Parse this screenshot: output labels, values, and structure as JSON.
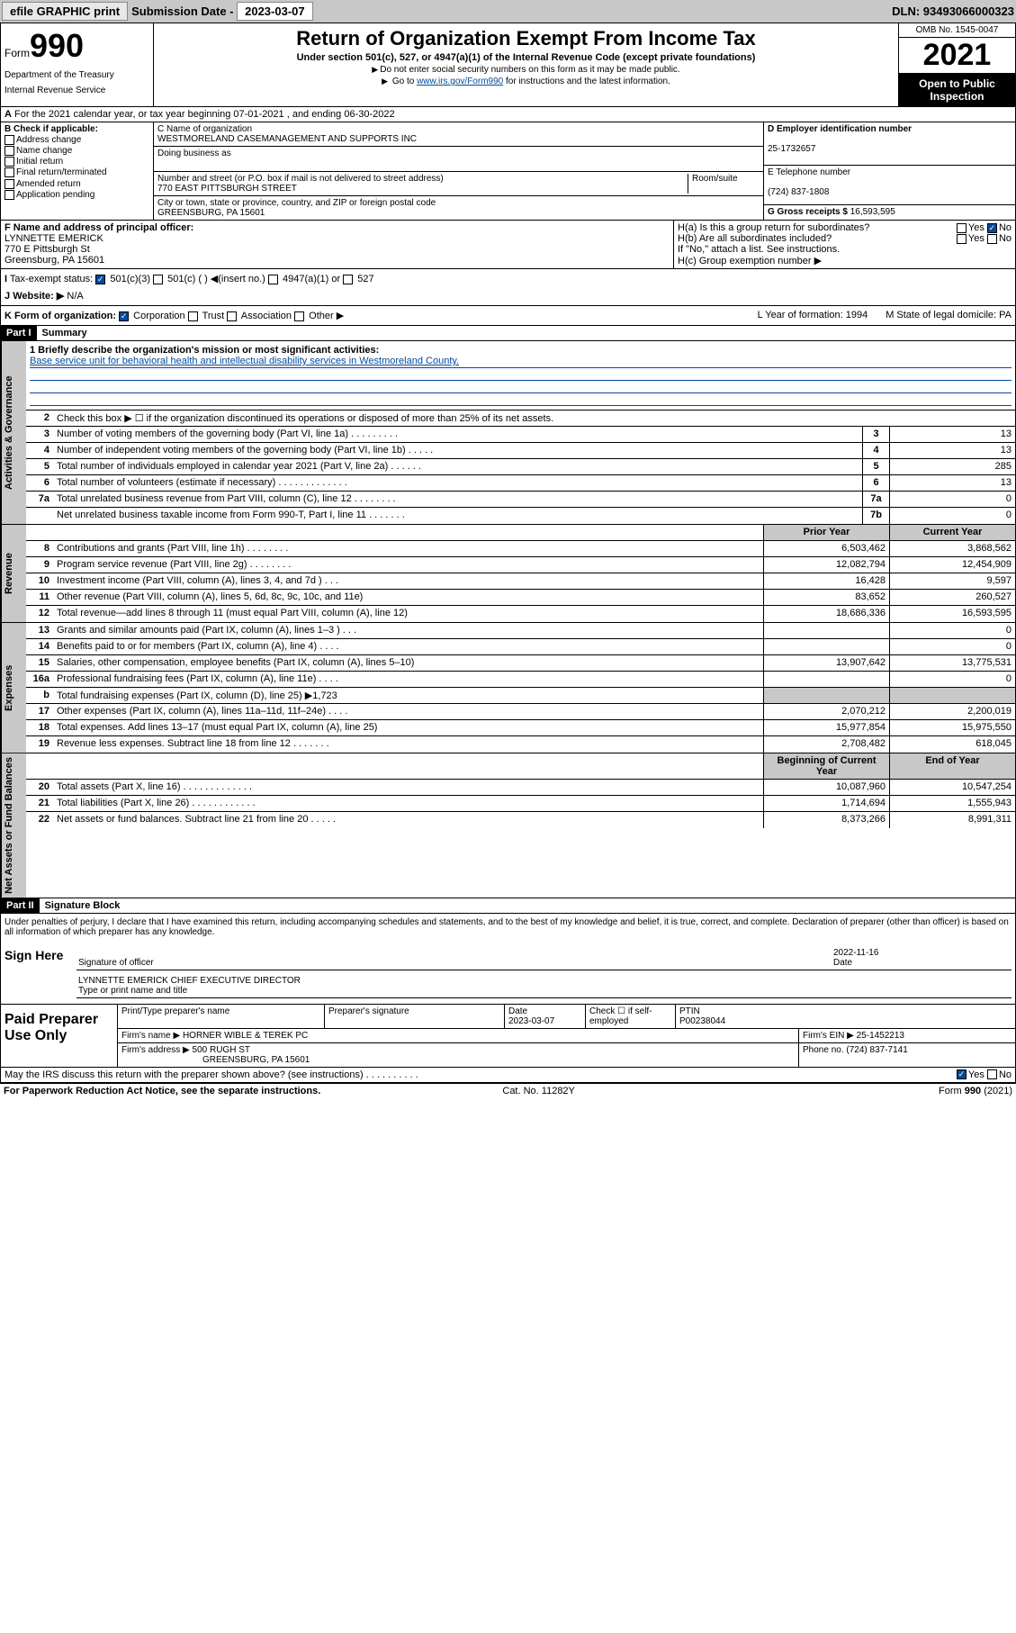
{
  "hdr": {
    "efile": "efile GRAPHIC print",
    "sub_lbl": "Submission Date - ",
    "sub_date": "2023-03-07",
    "dln": "DLN: 93493066000323"
  },
  "top": {
    "form_sm": "Form",
    "form_big": "990",
    "dept": "Department of the Treasury",
    "irs": "Internal Revenue Service",
    "title": "Return of Organization Exempt From Income Tax",
    "sub1": "Under section 501(c), 527, or 4947(a)(1) of the Internal Revenue Code (except private foundations)",
    "sub2": "Do not enter social security numbers on this form as it may be made public.",
    "sub3_pre": "Go to ",
    "sub3_link": "www.irs.gov/Form990",
    "sub3_post": " for instructions and the latest information.",
    "omb": "OMB No. 1545-0047",
    "year": "2021",
    "inspect": "Open to Public Inspection"
  },
  "a": {
    "text": "For the 2021 calendar year, or tax year beginning 07-01-2021   , and ending 06-30-2022"
  },
  "b": {
    "hdr": "B Check if applicable:",
    "opts": [
      "Address change",
      "Name change",
      "Initial return",
      "Final return/terminated",
      "Amended return",
      "Application pending"
    ]
  },
  "c": {
    "name_lbl": "C Name of organization",
    "name": "WESTMORELAND CASEMANAGEMENT AND SUPPORTS INC",
    "dba_lbl": "Doing business as",
    "addr_lbl": "Number and street (or P.O. box if mail is not delivered to street address)",
    "room_lbl": "Room/suite",
    "addr": "770 EAST PITTSBURGH STREET",
    "city_lbl": "City or town, state or province, country, and ZIP or foreign postal code",
    "city": "GREENSBURG, PA  15601"
  },
  "d": {
    "ein_lbl": "D Employer identification number",
    "ein": "25-1732657",
    "tel_lbl": "E Telephone number",
    "tel": "(724) 837-1808",
    "gross_lbl": "G Gross receipts $ ",
    "gross": "16,593,595"
  },
  "f": {
    "lbl": "F  Name and address of principal officer:",
    "name": "LYNNETTE EMERICK",
    "addr1": "770 E Pittsburgh St",
    "addr2": "Greensburg, PA  15601"
  },
  "h": {
    "a": "H(a)  Is this a group return for subordinates?",
    "b": "H(b)  Are all subordinates included?",
    "b2": "If \"No,\" attach a list. See instructions.",
    "c": "H(c)  Group exemption number ▶",
    "yes": "Yes",
    "no": "No"
  },
  "i": {
    "lbl": "Tax-exempt status:",
    "o1": "501(c)(3)",
    "o2": "501(c) (  ) ◀(insert no.)",
    "o3": "4947(a)(1) or",
    "o4": "527"
  },
  "j": {
    "lbl": "Website: ▶",
    "val": "N/A"
  },
  "k": {
    "lbl": "K Form of organization:",
    "o1": "Corporation",
    "o2": "Trust",
    "o3": "Association",
    "o4": "Other ▶",
    "l": "L Year of formation: 1994",
    "m": "M State of legal domicile: PA"
  },
  "p1": {
    "part": "Part I",
    "title": "Summary"
  },
  "mission": {
    "q": "1  Briefly describe the organization's mission or most significant activities:",
    "text": "Base service unit for behavioral health and intellectual disability services in Westmoreland County."
  },
  "gov": {
    "side": "Activities & Governance",
    "r2": "Check this box ▶ ☐  if the organization discontinued its operations or disposed of more than 25% of its net assets.",
    "rows": [
      {
        "n": "3",
        "t": "Number of voting members of the governing body (Part VI, line 1a)   .    .    .    .    .    .    .    .    .",
        "l": "3",
        "v": "13"
      },
      {
        "n": "4",
        "t": "Number of independent voting members of the governing body (Part VI, line 1b)   .    .    .    .    .",
        "l": "4",
        "v": "13"
      },
      {
        "n": "5",
        "t": "Total number of individuals employed in calendar year 2021 (Part V, line 2a)   .    .    .    .    .    .",
        "l": "5",
        "v": "285"
      },
      {
        "n": "6",
        "t": "Total number of volunteers (estimate if necessary)   .    .    .    .    .    .    .    .    .    .    .    .    .",
        "l": "6",
        "v": "13"
      },
      {
        "n": "7a",
        "t": "Total unrelated business revenue from Part VIII, column (C), line 12   .    .    .    .    .    .    .    .",
        "l": "7a",
        "v": "0"
      },
      {
        "n": "",
        "t": "Net unrelated business taxable income from Form 990-T, Part I, line 11   .    .    .    .    .    .    .",
        "l": "7b",
        "v": "0"
      }
    ]
  },
  "rev": {
    "side": "Revenue",
    "hdr_prior": "Prior Year",
    "hdr_cur": "Current Year",
    "rows": [
      {
        "n": "8",
        "t": "Contributions and grants (Part VIII, line 1h)   .    .    .    .    .    .    .    .",
        "p": "6,503,462",
        "c": "3,868,562"
      },
      {
        "n": "9",
        "t": "Program service revenue (Part VIII, line 2g)   .    .    .    .    .    .    .    .",
        "p": "12,082,794",
        "c": "12,454,909"
      },
      {
        "n": "10",
        "t": "Investment income (Part VIII, column (A), lines 3, 4, and 7d )   .    .    .",
        "p": "16,428",
        "c": "9,597"
      },
      {
        "n": "11",
        "t": "Other revenue (Part VIII, column (A), lines 5, 6d, 8c, 9c, 10c, and 11e)",
        "p": "83,652",
        "c": "260,527"
      },
      {
        "n": "12",
        "t": "Total revenue—add lines 8 through 11 (must equal Part VIII, column (A), line 12)",
        "p": "18,686,336",
        "c": "16,593,595"
      }
    ]
  },
  "exp": {
    "side": "Expenses",
    "rows": [
      {
        "n": "13",
        "t": "Grants and similar amounts paid (Part IX, column (A), lines 1–3 )   .    .    .",
        "p": "",
        "c": "0"
      },
      {
        "n": "14",
        "t": "Benefits paid to or for members (Part IX, column (A), line 4)   .    .    .    .",
        "p": "",
        "c": "0"
      },
      {
        "n": "15",
        "t": "Salaries, other compensation, employee benefits (Part IX, column (A), lines 5–10)",
        "p": "13,907,642",
        "c": "13,775,531"
      },
      {
        "n": "16a",
        "t": "Professional fundraising fees (Part IX, column (A), line 11e)   .    .    .    .",
        "p": "",
        "c": "0"
      },
      {
        "n": "b",
        "t": "Total fundraising expenses (Part IX, column (D), line 25) ▶1,723",
        "p": "shade",
        "c": "shade"
      },
      {
        "n": "17",
        "t": "Other expenses (Part IX, column (A), lines 11a–11d, 11f–24e)   .    .    .    .",
        "p": "2,070,212",
        "c": "2,200,019"
      },
      {
        "n": "18",
        "t": "Total expenses. Add lines 13–17 (must equal Part IX, column (A), line 25)",
        "p": "15,977,854",
        "c": "15,975,550"
      },
      {
        "n": "19",
        "t": "Revenue less expenses. Subtract line 18 from line 12   .    .    .    .    .    .    .",
        "p": "2,708,482",
        "c": "618,045"
      }
    ]
  },
  "net": {
    "side": "Net Assets or Fund Balances",
    "hdr_beg": "Beginning of Current Year",
    "hdr_end": "End of Year",
    "rows": [
      {
        "n": "20",
        "t": "Total assets (Part X, line 16)   .    .    .    .    .    .    .    .    .    .    .    .    .",
        "p": "10,087,960",
        "c": "10,547,254"
      },
      {
        "n": "21",
        "t": "Total liabilities (Part X, line 26)   .    .    .    .    .    .    .    .    .    .    .    .",
        "p": "1,714,694",
        "c": "1,555,943"
      },
      {
        "n": "22",
        "t": "Net assets or fund balances. Subtract line 21 from line 20   .    .    .    .    .",
        "p": "8,373,266",
        "c": "8,991,311"
      }
    ]
  },
  "p2": {
    "part": "Part II",
    "title": "Signature Block"
  },
  "sig": {
    "decl": "Under penalties of perjury, I declare that I have examined this return, including accompanying schedules and statements, and to the best of my knowledge and belief, it is true, correct, and complete. Declaration of preparer (other than officer) is based on all information of which preparer has any knowledge.",
    "here": "Sign Here",
    "off_lbl": "Signature of officer",
    "date": "2022-11-16",
    "date_lbl": "Date",
    "name": "LYNNETTE EMERICK  CHIEF EXECUTIVE DIRECTOR",
    "name_lbl": "Type or print name and title"
  },
  "paid": {
    "lbl": "Paid Preparer Use Only",
    "h1": "Print/Type preparer's name",
    "h2": "Preparer's signature",
    "h3": "Date",
    "h3v": "2023-03-07",
    "h4": "Check ☐ if self-employed",
    "h5": "PTIN",
    "h5v": "P00238044",
    "firm_lbl": "Firm's name    ▶",
    "firm": "HORNER WIBLE & TEREK PC",
    "ein_lbl": "Firm's EIN ▶",
    "ein": "25-1452213",
    "addr_lbl": "Firm's address ▶",
    "addr1": "500 RUGH ST",
    "addr2": "GREENSBURG, PA  15601",
    "ph_lbl": "Phone no.",
    "ph": "(724) 837-7141"
  },
  "foot": {
    "q": "May the IRS discuss this return with the preparer shown above? (see instructions)   .    .    .    .    .    .    .    .    .    .",
    "yes": "Yes",
    "no": "No",
    "pra": "For Paperwork Reduction Act Notice, see the separate instructions.",
    "cat": "Cat. No. 11282Y",
    "form": "Form 990 (2021)"
  }
}
